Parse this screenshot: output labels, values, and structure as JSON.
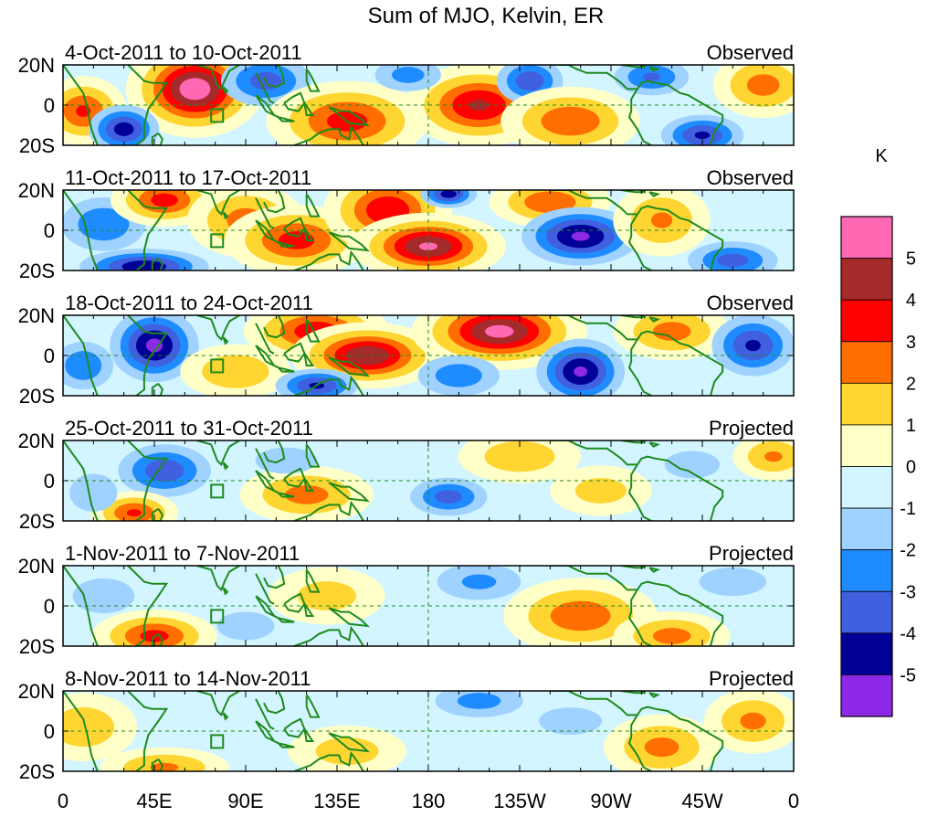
{
  "chart_data": {
    "type": "heatmap",
    "title": "Sum of MJO, Kelvin, ER",
    "unit_label": "K",
    "x_ticks": [
      "0",
      "45E",
      "90E",
      "135E",
      "180",
      "135W",
      "90W",
      "45W",
      "0"
    ],
    "y_ticks": [
      "20N",
      "0",
      "20S"
    ],
    "xlim": [
      0,
      360
    ],
    "ylim": [
      -20,
      20
    ],
    "grid": "dashed lines at equator and 180",
    "colorbar": {
      "labels": [
        "5",
        "4",
        "3",
        "2",
        "1",
        "0",
        "-1",
        "-2",
        "-3",
        "-4",
        "-5"
      ],
      "colors": [
        "#ff69b4",
        "#a52a2a",
        "#ff0000",
        "#ff6e00",
        "#ffd531",
        "#ffffc8",
        "#d2f5ff",
        "#a0d2ff",
        "#1e8cff",
        "#4060e0",
        "#000096",
        "#8c28e6"
      ]
    },
    "panels": [
      {
        "period": "4-Oct-2011 to 10-Oct-2011",
        "status": "Observed",
        "blobs": [
          {
            "lon": 65,
            "lat": 8,
            "val": 5.8,
            "sx": 14,
            "sy": 10
          },
          {
            "lon": 10,
            "lat": -3,
            "val": 3.2,
            "sx": 10,
            "sy": 8
          },
          {
            "lon": 30,
            "lat": -12,
            "val": -4.5,
            "sx": 10,
            "sy": 7
          },
          {
            "lon": 100,
            "lat": 12,
            "val": -3.5,
            "sx": 14,
            "sy": 8
          },
          {
            "lon": 140,
            "lat": -8,
            "val": 3.5,
            "sx": 18,
            "sy": 9
          },
          {
            "lon": 205,
            "lat": 0,
            "val": 4.2,
            "sx": 16,
            "sy": 9
          },
          {
            "lon": 170,
            "lat": 15,
            "val": -2.5,
            "sx": 12,
            "sy": 6
          },
          {
            "lon": 230,
            "lat": 12,
            "val": -3.8,
            "sx": 10,
            "sy": 7
          },
          {
            "lon": 250,
            "lat": -8,
            "val": 3,
            "sx": 16,
            "sy": 8
          },
          {
            "lon": 290,
            "lat": 14,
            "val": -3.2,
            "sx": 12,
            "sy": 6
          },
          {
            "lon": 315,
            "lat": -15,
            "val": -4.2,
            "sx": 12,
            "sy": 6
          },
          {
            "lon": 345,
            "lat": 10,
            "val": 2.5,
            "sx": 12,
            "sy": 8
          }
        ]
      },
      {
        "period": "11-Oct-2011 to 17-Oct-2011",
        "status": "Observed",
        "blobs": [
          {
            "lon": 20,
            "lat": 3,
            "val": -3,
            "sx": 14,
            "sy": 9
          },
          {
            "lon": 40,
            "lat": -18,
            "val": -4.8,
            "sx": 18,
            "sy": 5
          },
          {
            "lon": 50,
            "lat": 15,
            "val": 3.5,
            "sx": 12,
            "sy": 6
          },
          {
            "lon": 90,
            "lat": 5,
            "val": 2.5,
            "sx": 14,
            "sy": 9
          },
          {
            "lon": 115,
            "lat": -5,
            "val": 3.5,
            "sx": 16,
            "sy": 8
          },
          {
            "lon": 160,
            "lat": 10,
            "val": 4,
            "sx": 14,
            "sy": 9
          },
          {
            "lon": 180,
            "lat": -8,
            "val": 5.2,
            "sx": 16,
            "sy": 7
          },
          {
            "lon": 190,
            "lat": 18,
            "val": -4.5,
            "sx": 8,
            "sy": 4
          },
          {
            "lon": 240,
            "lat": 14,
            "val": 3,
            "sx": 14,
            "sy": 6
          },
          {
            "lon": 255,
            "lat": -3,
            "val": -5.2,
            "sx": 16,
            "sy": 8
          },
          {
            "lon": 295,
            "lat": 5,
            "val": 2.2,
            "sx": 12,
            "sy": 9
          },
          {
            "lon": 330,
            "lat": -15,
            "val": -3.5,
            "sx": 14,
            "sy": 6
          }
        ]
      },
      {
        "period": "18-Oct-2011 to 24-Oct-2011",
        "status": "Observed",
        "blobs": [
          {
            "lon": 45,
            "lat": 5,
            "val": -5.3,
            "sx": 12,
            "sy": 10
          },
          {
            "lon": 10,
            "lat": -5,
            "val": -3,
            "sx": 10,
            "sy": 8
          },
          {
            "lon": 85,
            "lat": -8,
            "val": 2,
            "sx": 14,
            "sy": 7
          },
          {
            "lon": 125,
            "lat": 12,
            "val": 3.8,
            "sx": 16,
            "sy": 7
          },
          {
            "lon": 150,
            "lat": 0,
            "val": 5,
            "sx": 16,
            "sy": 7
          },
          {
            "lon": 125,
            "lat": -15,
            "val": -4.2,
            "sx": 12,
            "sy": 5
          },
          {
            "lon": 215,
            "lat": 12,
            "val": 5.4,
            "sx": 18,
            "sy": 8
          },
          {
            "lon": 195,
            "lat": -10,
            "val": -2.8,
            "sx": 14,
            "sy": 7
          },
          {
            "lon": 255,
            "lat": -8,
            "val": -5.2,
            "sx": 12,
            "sy": 9
          },
          {
            "lon": 300,
            "lat": 12,
            "val": 2.5,
            "sx": 14,
            "sy": 7
          },
          {
            "lon": 340,
            "lat": 5,
            "val": -4.2,
            "sx": 12,
            "sy": 9
          }
        ]
      },
      {
        "period": "25-Oct-2011 to 31-Oct-2011",
        "status": "Projected",
        "blobs": [
          {
            "lon": 50,
            "lat": 5,
            "val": -3.8,
            "sx": 14,
            "sy": 8
          },
          {
            "lon": 35,
            "lat": -16,
            "val": 3.2,
            "sx": 10,
            "sy": 5
          },
          {
            "lon": 15,
            "lat": -6,
            "val": -2,
            "sx": 10,
            "sy": 8
          },
          {
            "lon": 120,
            "lat": -7,
            "val": 2.5,
            "sx": 16,
            "sy": 7
          },
          {
            "lon": 110,
            "lat": 10,
            "val": -1.8,
            "sx": 14,
            "sy": 6
          },
          {
            "lon": 190,
            "lat": -8,
            "val": -3.5,
            "sx": 12,
            "sy": 6
          },
          {
            "lon": 225,
            "lat": 12,
            "val": 1.8,
            "sx": 16,
            "sy": 7
          },
          {
            "lon": 265,
            "lat": -5,
            "val": 1.5,
            "sx": 14,
            "sy": 7
          },
          {
            "lon": 310,
            "lat": 8,
            "val": -1.6,
            "sx": 14,
            "sy": 7
          },
          {
            "lon": 350,
            "lat": 12,
            "val": 2.2,
            "sx": 10,
            "sy": 6
          }
        ]
      },
      {
        "period": "1-Nov-2011 to 7-Nov-2011",
        "status": "Projected",
        "blobs": [
          {
            "lon": 45,
            "lat": -15,
            "val": 3.4,
            "sx": 14,
            "sy": 6
          },
          {
            "lon": 20,
            "lat": 5,
            "val": -1.8,
            "sx": 14,
            "sy": 8
          },
          {
            "lon": 90,
            "lat": -10,
            "val": -2,
            "sx": 12,
            "sy": 6
          },
          {
            "lon": 130,
            "lat": 5,
            "val": 1.5,
            "sx": 16,
            "sy": 8
          },
          {
            "lon": 205,
            "lat": 12,
            "val": -2.3,
            "sx": 16,
            "sy": 7
          },
          {
            "lon": 255,
            "lat": -5,
            "val": 2.8,
            "sx": 18,
            "sy": 9
          },
          {
            "lon": 300,
            "lat": -15,
            "val": 2.5,
            "sx": 14,
            "sy": 6
          },
          {
            "lon": 330,
            "lat": 12,
            "val": -2,
            "sx": 14,
            "sy": 6
          }
        ]
      },
      {
        "period": "8-Nov-2011 to 14-Nov-2011",
        "status": "Projected",
        "blobs": [
          {
            "lon": 10,
            "lat": 2,
            "val": 1.8,
            "sx": 14,
            "sy": 9
          },
          {
            "lon": 50,
            "lat": -18,
            "val": 2.2,
            "sx": 16,
            "sy": 5
          },
          {
            "lon": 140,
            "lat": -10,
            "val": 1.6,
            "sx": 16,
            "sy": 7
          },
          {
            "lon": 205,
            "lat": 15,
            "val": -2.5,
            "sx": 16,
            "sy": 6
          },
          {
            "lon": 250,
            "lat": 5,
            "val": -1.6,
            "sx": 16,
            "sy": 7
          },
          {
            "lon": 295,
            "lat": -8,
            "val": 2.4,
            "sx": 14,
            "sy": 8
          },
          {
            "lon": 340,
            "lat": 5,
            "val": 2.3,
            "sx": 12,
            "sy": 8
          }
        ]
      }
    ]
  }
}
